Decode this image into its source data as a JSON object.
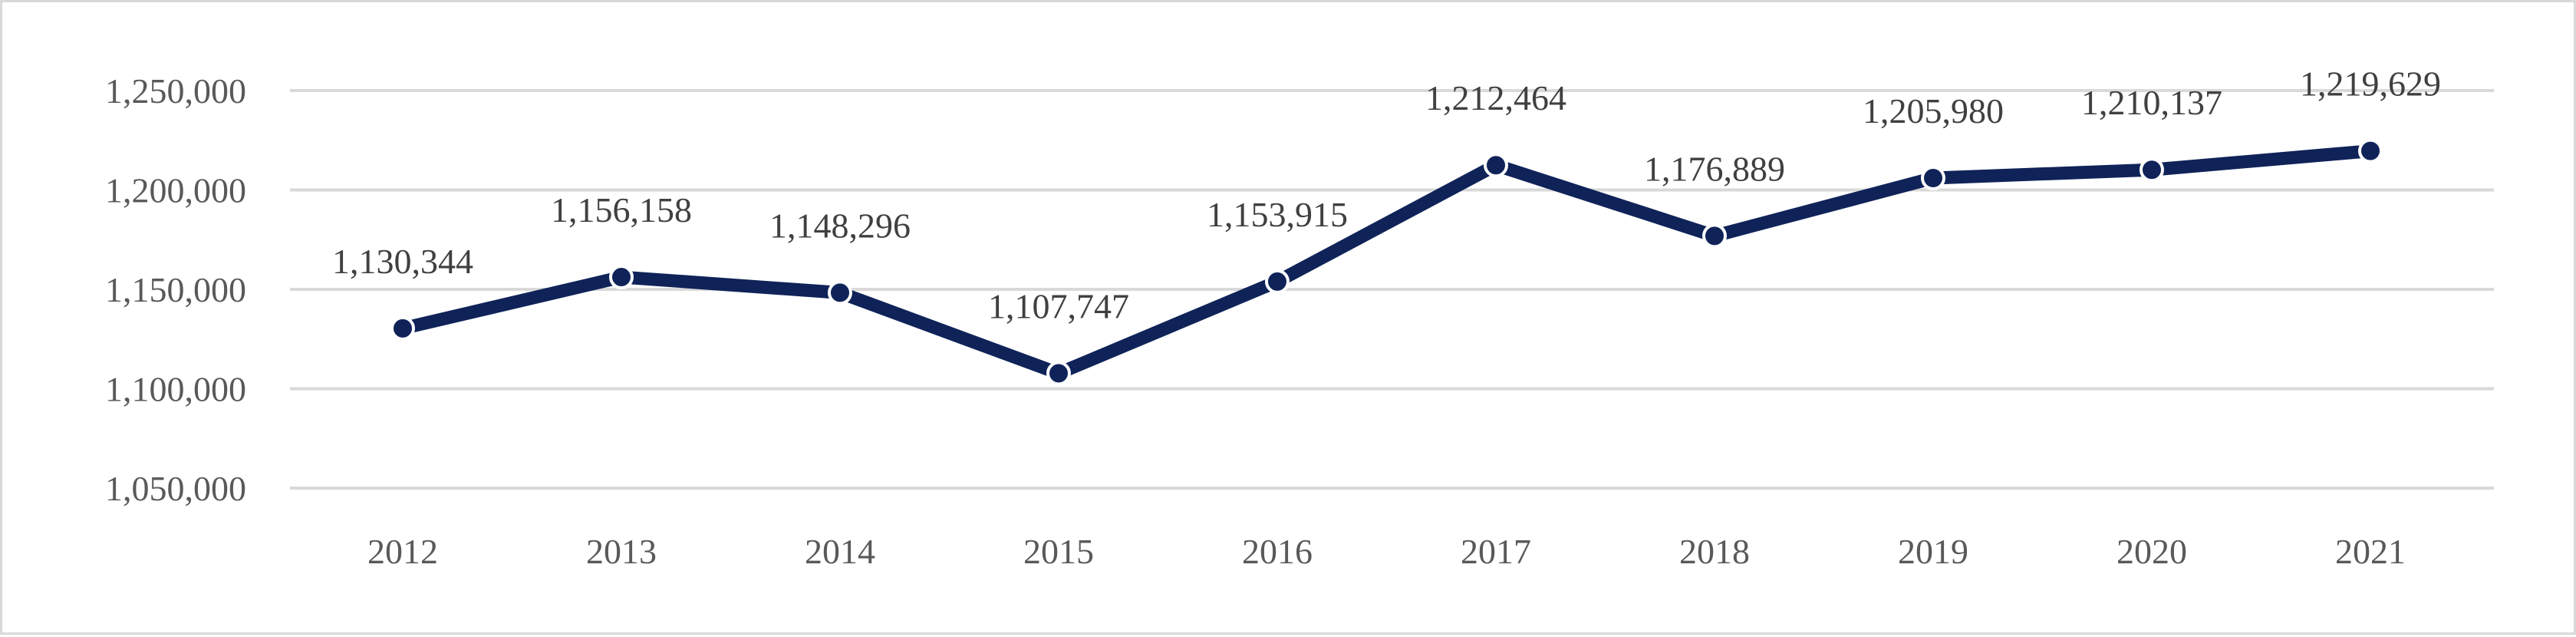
{
  "chart_data": {
    "type": "line",
    "title": "",
    "xlabel": "",
    "ylabel": "",
    "categories": [
      "2012",
      "2013",
      "2014",
      "2015",
      "2016",
      "2017",
      "2018",
      "2019",
      "2020",
      "2021"
    ],
    "series": [
      {
        "values": [
          1130344,
          1156158,
          1148296,
          1107747,
          1153915,
          1212464,
          1176889,
          1205980,
          1210137,
          1219629
        ],
        "value_labels": [
          "1,130,344",
          "1,156,158",
          "1,148,296",
          "1,107,747",
          "1,153,915",
          "1,212,464",
          "1,176,889",
          "1,205,980",
          "1,210,137",
          "1,219,629"
        ],
        "color": "#0f2359"
      }
    ],
    "ylim": [
      1050000,
      1250000
    ],
    "yticks": [
      1050000,
      1100000,
      1150000,
      1200000,
      1250000
    ],
    "ytick_labels": [
      "1,050,000",
      "1,100,000",
      "1,150,000",
      "1,200,000",
      "1,250,000"
    ],
    "grid": true,
    "legend": "none",
    "colors": {
      "line": "#0f2359",
      "marker_edge": "#ffffff",
      "grid": "#d9d9d9",
      "axis_text": "#595959"
    }
  }
}
